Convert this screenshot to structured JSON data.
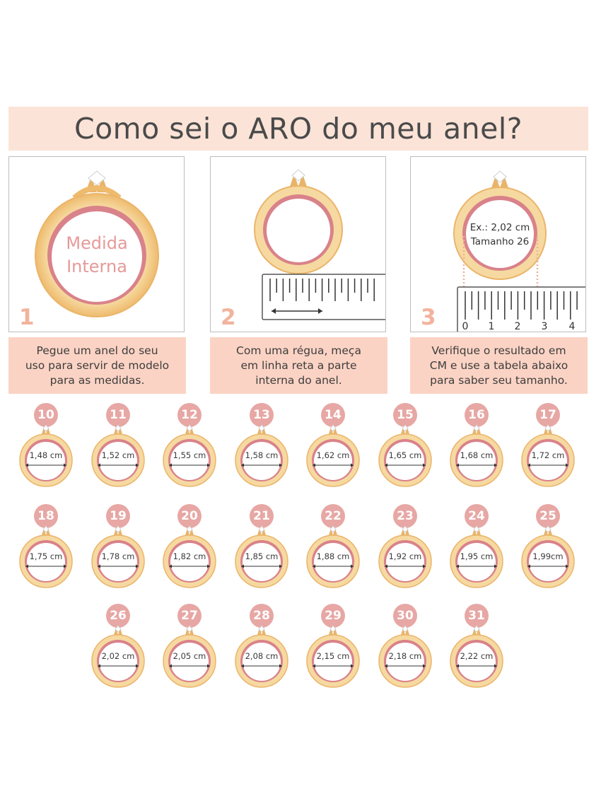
{
  "title": "Como sei o ARO do meu anel?",
  "steps": [
    {
      "number": "1",
      "inner_line1": "Medida",
      "inner_line2": "Interna",
      "caption": "Pegue um anel do seu\nuso para servir de modelo\npara as medidas."
    },
    {
      "number": "2",
      "caption": "Com uma régua, meça\nem linha reta a parte\ninterna do anel."
    },
    {
      "number": "3",
      "inner_line1": "Ex.: 2,02 cm",
      "inner_line2": "Tamanho 26",
      "ruler_labels": [
        "0",
        "1",
        "2",
        "3",
        "4"
      ],
      "caption": "Verifique o resultado em\nCM e use a tabela abaixo\npara saber seu tamanho."
    }
  ],
  "sizes": [
    {
      "size": "10",
      "cm": "1,48 cm"
    },
    {
      "size": "11",
      "cm": "1,52 cm"
    },
    {
      "size": "12",
      "cm": "1,55 cm"
    },
    {
      "size": "13",
      "cm": "1,58 cm"
    },
    {
      "size": "14",
      "cm": "1,62 cm"
    },
    {
      "size": "15",
      "cm": "1,65 cm"
    },
    {
      "size": "16",
      "cm": "1,68 cm"
    },
    {
      "size": "17",
      "cm": "1,72 cm"
    },
    {
      "size": "18",
      "cm": "1,75 cm"
    },
    {
      "size": "19",
      "cm": "1,78 cm"
    },
    {
      "size": "20",
      "cm": "1,82 cm"
    },
    {
      "size": "21",
      "cm": "1,85 cm"
    },
    {
      "size": "22",
      "cm": "1,88 cm"
    },
    {
      "size": "23",
      "cm": "1,92 cm"
    },
    {
      "size": "24",
      "cm": "1,95 cm"
    },
    {
      "size": "25",
      "cm": "1,99cm"
    },
    {
      "size": "26",
      "cm": "2,02 cm"
    },
    {
      "size": "27",
      "cm": "2,05 cm"
    },
    {
      "size": "28",
      "cm": "2,08 cm"
    },
    {
      "size": "29",
      "cm": "2,15 cm"
    },
    {
      "size": "30",
      "cm": "2,18 cm"
    },
    {
      "size": "31",
      "cm": "2,22 cm"
    }
  ],
  "colors": {
    "gold": "#f3cf8e",
    "gold_dark": "#e2ad5c",
    "rose": "#d9828a",
    "badge": "#e7a7a4",
    "title_bg": "#fbe3d7",
    "caption_bg": "#fbd3c4",
    "step_number": "#f2b39d"
  }
}
